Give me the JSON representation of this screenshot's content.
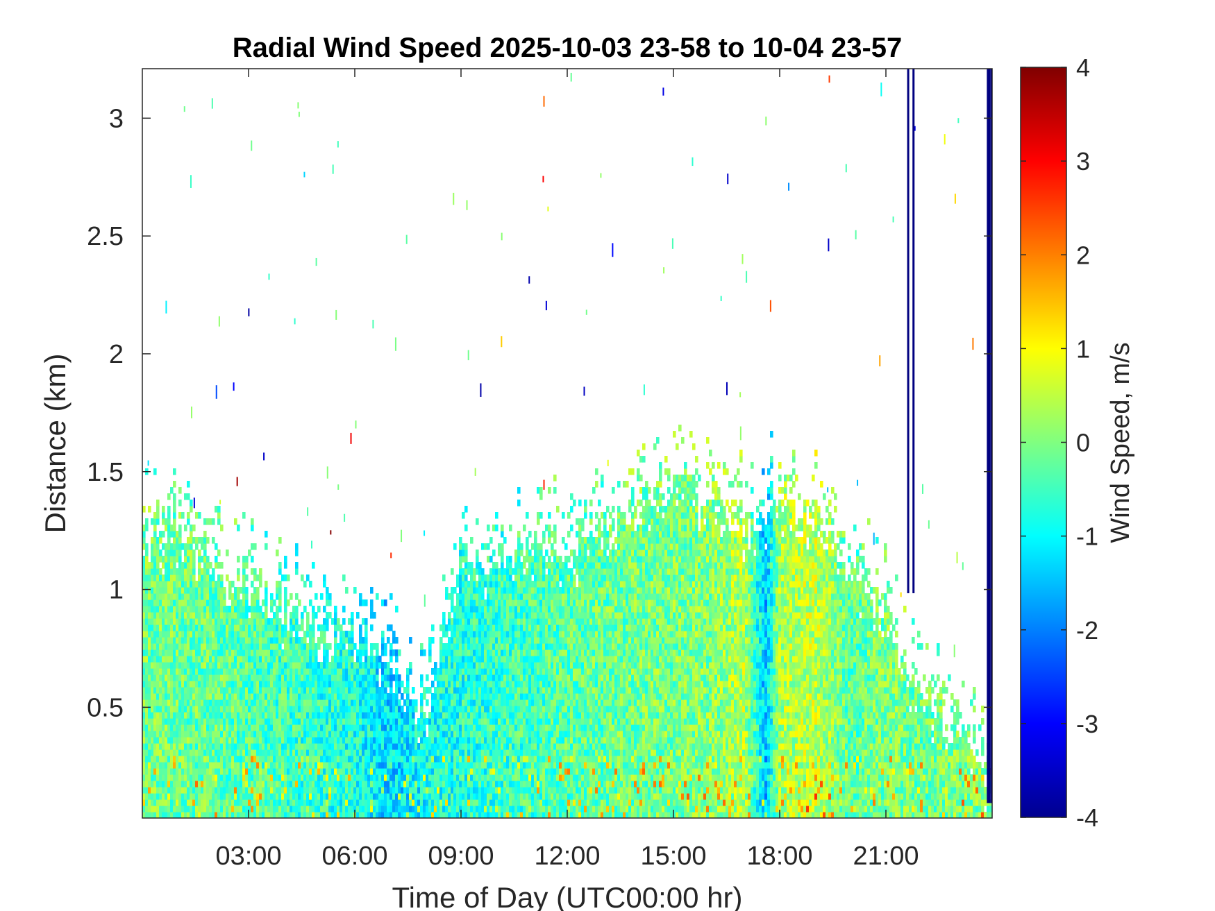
{
  "figure": {
    "title": "Radial Wind Speed 2025-10-03 23-58 to 10-04 23-57",
    "xlabel": "Time of Day (UTC00:00 hr)",
    "ylabel": "Distance (km)",
    "colorbar_label": "Wind Speed, m/s"
  },
  "chart_data": {
    "type": "heatmap",
    "title": "Radial Wind Speed 2025-10-03 23-58 to 10-04 23-57",
    "xlabel": "Time of Day (UTC00:00 hr)",
    "ylabel": "Distance (km)",
    "x_units": "hours since 00:00 UTC",
    "xlim": [
      0,
      24
    ],
    "ylim": [
      0.03,
      3.21
    ],
    "x_ticks": [
      3,
      6,
      9,
      12,
      15,
      18,
      21
    ],
    "x_tick_labels": [
      "03:00",
      "06:00",
      "09:00",
      "12:00",
      "15:00",
      "18:00",
      "21:00"
    ],
    "y_ticks": [
      0.5,
      1,
      1.5,
      2,
      2.5,
      3
    ],
    "y_tick_labels": [
      "0.5",
      "1",
      "1.5",
      "2",
      "2.5",
      "3"
    ],
    "colormap": "jet",
    "clim": [
      -4,
      4
    ],
    "colorbar_ticks": [
      4,
      3,
      2,
      1,
      0,
      -1,
      -2,
      -3,
      -4
    ],
    "colorbar_tick_labels": [
      "4",
      "3",
      "2",
      "1",
      "0",
      "-1",
      "-2",
      "-3",
      "-4"
    ],
    "colorbar_label": "Wind Speed, m/s",
    "grid": false,
    "top_of_signal_km": {
      "hour": [
        0,
        1,
        2,
        3,
        4,
        5,
        6,
        7,
        8,
        9,
        10,
        11,
        12,
        13,
        14,
        15,
        16,
        17,
        18,
        19,
        20,
        21,
        22,
        23,
        23.6,
        24
      ],
      "height_km": [
        1.25,
        1.3,
        1.12,
        1.05,
        0.95,
        0.88,
        0.82,
        0.75,
        0.5,
        1.15,
        1.15,
        1.2,
        1.22,
        1.25,
        1.42,
        1.5,
        1.4,
        1.3,
        1.42,
        1.35,
        1.1,
        0.95,
        0.55,
        0.5,
        0.3,
        0.2
      ]
    },
    "mean_speed_m_s": {
      "hour": [
        0,
        2,
        4,
        6,
        7,
        8,
        10,
        12,
        14,
        16,
        17,
        17.6,
        18,
        19,
        20,
        21,
        22,
        23,
        24
      ],
      "value": [
        -0.1,
        -0.2,
        -0.5,
        -0.8,
        -1.3,
        -0.9,
        -0.6,
        -0.3,
        -0.1,
        0.0,
        0.4,
        -1.5,
        0.3,
        0.5,
        -0.3,
        0.0,
        -0.2,
        0.0,
        0.0
      ]
    },
    "saturated_columns_hours": [
      21.6,
      21.75,
      23.85,
      23.95
    ],
    "saturated_value_m_s": -4
  }
}
